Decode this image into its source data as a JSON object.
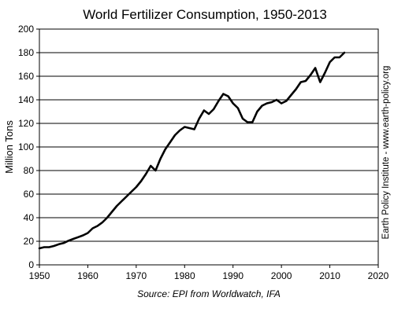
{
  "chart_data": {
    "type": "line",
    "title": "World Fertilizer Consumption, 1950-2013",
    "xlabel": "",
    "ylabel": "Million Tons",
    "source": "Source: EPI from Worldwatch, IFA",
    "credit": "Earth Policy Institute - www.earth-policy.org",
    "xlim": [
      1950,
      2020
    ],
    "ylim": [
      0,
      200
    ],
    "xticks": [
      "1950",
      "1960",
      "1970",
      "1980",
      "1990",
      "2000",
      "2010",
      "2020"
    ],
    "yticks": [
      "0",
      "20",
      "40",
      "60",
      "80",
      "100",
      "120",
      "140",
      "160",
      "180",
      "200"
    ],
    "grid": "horizontal",
    "series": [
      {
        "name": "",
        "color": "#000000",
        "x": [
          1950,
          1951,
          1952,
          1953,
          1954,
          1955,
          1956,
          1957,
          1958,
          1959,
          1960,
          1961,
          1962,
          1963,
          1964,
          1965,
          1966,
          1967,
          1968,
          1969,
          1970,
          1971,
          1972,
          1973,
          1974,
          1975,
          1976,
          1977,
          1978,
          1979,
          1980,
          1981,
          1982,
          1983,
          1984,
          1985,
          1986,
          1987,
          1988,
          1989,
          1990,
          1991,
          1992,
          1993,
          1994,
          1995,
          1996,
          1997,
          1998,
          1999,
          2000,
          2001,
          2002,
          2003,
          2004,
          2005,
          2006,
          2007,
          2008,
          2009,
          2010,
          2011,
          2012,
          2013
        ],
        "y": [
          14,
          15,
          15,
          16,
          17.5,
          18.5,
          20.5,
          22,
          23.5,
          25,
          27,
          31,
          33,
          36,
          40,
          45,
          50,
          54,
          58,
          62,
          66,
          71,
          77,
          84,
          80,
          90,
          98,
          104,
          110,
          114,
          117,
          116,
          115,
          124,
          131,
          128,
          132,
          139,
          145,
          143,
          137,
          133,
          124,
          121,
          121,
          130,
          135,
          137,
          138,
          140,
          137,
          139,
          144,
          149,
          155,
          156,
          161,
          167,
          155,
          163,
          172,
          176,
          176,
          180
        ]
      }
    ]
  }
}
